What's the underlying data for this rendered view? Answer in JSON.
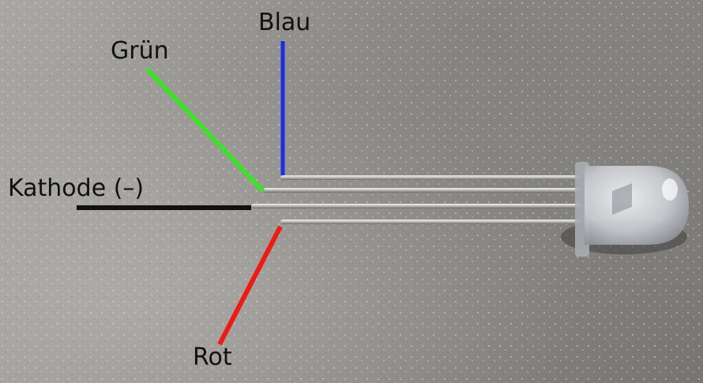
{
  "labels": {
    "blue": "Blau",
    "green": "Grün",
    "cathode": "Kathode (–)",
    "red": "Rot"
  },
  "colors": {
    "blue_line": "#1a2ee6",
    "green_line": "#3fe02a",
    "cathode_line": "#111111",
    "red_line": "#f01a14",
    "surface": "#9b9995"
  },
  "subject": {
    "component": "rgb-led-4-pin",
    "pin_count": 4
  }
}
